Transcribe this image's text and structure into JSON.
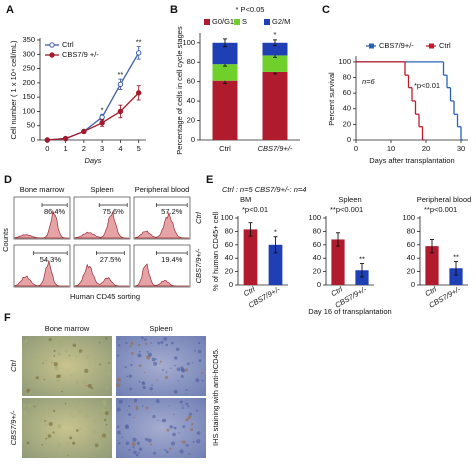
{
  "figure": {
    "panel_labels": [
      "A",
      "B",
      "C",
      "D",
      "E",
      "F"
    ]
  },
  "chart_data": [
    {
      "type": "line",
      "x": [
        0,
        1,
        2,
        3,
        4,
        5
      ],
      "xlim": [
        -0.4,
        5.4
      ],
      "xticks": [
        0,
        1,
        2,
        3,
        4,
        5
      ],
      "ylim": [
        0,
        350
      ],
      "yticks": [
        0,
        50,
        100,
        150,
        200,
        250,
        300,
        350
      ],
      "x_label": "Days",
      "y_label": "Cell number ( 1 x 10⁴ cell/mL)",
      "legend": "upper left",
      "series": [
        {
          "name": "Ctrl",
          "color": "#3e5ea8",
          "values": [
            0,
            5,
            30,
            80,
            195,
            305
          ],
          "errors": [
            0,
            1,
            4,
            10,
            18,
            22
          ]
        },
        {
          "name": "CBS7/9 +/-",
          "color": "#a01c2c",
          "values": [
            0,
            5,
            30,
            60,
            100,
            165
          ],
          "errors": [
            0,
            1,
            4,
            12,
            22,
            25
          ]
        }
      ],
      "significance": [
        null,
        null,
        null,
        "*",
        "**",
        "**"
      ]
    },
    {
      "type": "stacked_bar",
      "title": "* P<0.05",
      "categories": [
        "Ctrl",
        "CBS7/9+/-"
      ],
      "ylim": [
        0,
        108
      ],
      "yticks": [
        0,
        20,
        40,
        60,
        80,
        100
      ],
      "y_label": "Percentage of cells in cell cycle stages",
      "legend": "top",
      "series": [
        {
          "name": "G0/G1",
          "color": "#b01c2e",
          "values": [
            61,
            70
          ],
          "errors": [
            3,
            2
          ]
        },
        {
          "name": "S",
          "color": "#6fd02c",
          "values": [
            17,
            17
          ],
          "errors": [
            2,
            2
          ]
        },
        {
          "name": "G2/M",
          "color": "#1f3fb5",
          "values": [
            22,
            13
          ],
          "errors": [
            4,
            3
          ]
        }
      ],
      "significance": [
        null,
        "*"
      ]
    },
    {
      "type": "step",
      "x_label": "Days after transplantation",
      "y_label": "Percent survival",
      "xlim": [
        0,
        32
      ],
      "xticks": [
        0,
        10,
        20,
        30
      ],
      "ylim": [
        0,
        105
      ],
      "yticks": [
        0,
        20,
        40,
        60,
        80,
        100
      ],
      "legend": "top",
      "series": [
        {
          "name": "CBS7/9+/-",
          "color": "#2a62b8",
          "x": [
            0,
            25,
            26,
            27,
            28,
            29,
            30
          ],
          "values": [
            100,
            83,
            67,
            50,
            33,
            17,
            0
          ]
        },
        {
          "name": "Ctrl",
          "color": "#c01c2c",
          "x": [
            0,
            14,
            15,
            16,
            17,
            18,
            19
          ],
          "values": [
            100,
            83,
            67,
            50,
            33,
            17,
            0
          ]
        }
      ],
      "annotations": [
        "n=6",
        "*p<0.01"
      ]
    },
    {
      "type": "bar",
      "title": "BM",
      "annotation": "*p<0.01",
      "y_label": "% of human CD45+ cell",
      "categories": [
        "Ctrl",
        "CBS7/9+/-"
      ],
      "values": [
        83,
        60
      ],
      "errors": [
        10,
        12
      ],
      "colors": [
        "#b01c2e",
        "#1f3fb5"
      ],
      "ylim": [
        0,
        100
      ],
      "yticks": [
        0,
        20,
        40,
        60,
        80,
        100
      ],
      "significance": [
        null,
        "*"
      ]
    },
    {
      "type": "bar",
      "title": "Spleen",
      "annotation": "**p<0.001",
      "categories": [
        "Ctrl",
        "CBS7/9+/-"
      ],
      "values": [
        68,
        22
      ],
      "errors": [
        10,
        10
      ],
      "colors": [
        "#b01c2e",
        "#1f3fb5"
      ],
      "ylim": [
        0,
        100
      ],
      "yticks": [
        0,
        20,
        40,
        60,
        80,
        100
      ],
      "significance": [
        null,
        "**"
      ]
    },
    {
      "type": "bar",
      "title": "Peripheral blood",
      "annotation": "**p<0.001",
      "categories": [
        "Ctrl",
        "CBS7/9+/-"
      ],
      "values": [
        58,
        25
      ],
      "errors": [
        10,
        10
      ],
      "colors": [
        "#b01c2e",
        "#1f3fb5"
      ],
      "ylim": [
        0,
        100
      ],
      "yticks": [
        0,
        20,
        40,
        60,
        80,
        100
      ],
      "significance": [
        null,
        "**"
      ]
    }
  ],
  "panel_d": {
    "columns": [
      "Bone marrow",
      "Spleen",
      "Peripheral blood"
    ],
    "rows": [
      "Ctrl",
      "CBS7/9+/-"
    ],
    "percentages": [
      [
        "86.4%",
        "75.6%",
        "57.2%"
      ],
      [
        "54.3%",
        "27.5%",
        "19.4%"
      ]
    ],
    "y_label": "Counts",
    "x_label": "Human CD45 sorting"
  },
  "panel_e": {
    "header": "Ctrl : n=5  CBS7/9+/-: n=4",
    "footer": "Day 16 of transplantation"
  },
  "panel_f": {
    "columns": [
      "Bone marrow",
      "Spleen"
    ],
    "rows": [
      "Ctrl",
      "CBS7/9+/-"
    ],
    "side_label": "IHS staining with anti-hCD45."
  }
}
